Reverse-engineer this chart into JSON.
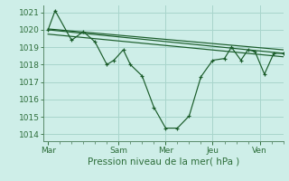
{
  "background_color": "#ceeee8",
  "grid_color": "#a8d5cc",
  "line_color": "#1a5c2a",
  "marker_color": "#1a5c2a",
  "xlabel": "Pression niveau de la mer( hPa )",
  "xlabel_fontsize": 7.5,
  "yticks": [
    1014,
    1015,
    1016,
    1017,
    1018,
    1019,
    1020,
    1021
  ],
  "ylim": [
    1013.6,
    1021.4
  ],
  "xtick_labels": [
    "Mar",
    "Sam",
    "Mer",
    "Jeu",
    "Ven"
  ],
  "xtick_positions": [
    0,
    30,
    50,
    70,
    90
  ],
  "xlim": [
    -2,
    100
  ],
  "series1_x": [
    0,
    3,
    10,
    15,
    20,
    25,
    28,
    32,
    35,
    40,
    45,
    50,
    55,
    60,
    65,
    70,
    75,
    78,
    82,
    85,
    88,
    92,
    96,
    100
  ],
  "series1_y": [
    1020.0,
    1021.1,
    1019.4,
    1019.9,
    1019.3,
    1018.0,
    1018.25,
    1018.85,
    1018.0,
    1017.35,
    1015.55,
    1014.35,
    1014.35,
    1015.05,
    1017.3,
    1018.25,
    1018.35,
    1019.0,
    1018.25,
    1018.85,
    1018.75,
    1017.45,
    1018.65,
    1018.65
  ],
  "trend1_x": [
    0,
    100
  ],
  "trend1_y": [
    1020.05,
    1018.85
  ],
  "trend2_x": [
    0,
    100
  ],
  "trend2_y": [
    1020.0,
    1018.65
  ],
  "trend3_x": [
    0,
    100
  ],
  "trend3_y": [
    1019.75,
    1018.45
  ],
  "vline_positions": [
    30,
    50,
    70,
    90
  ],
  "xminortick_positions": [
    5,
    10,
    15,
    20,
    25,
    35,
    40,
    45,
    55,
    60,
    65,
    75,
    80,
    85,
    95,
    100
  ]
}
